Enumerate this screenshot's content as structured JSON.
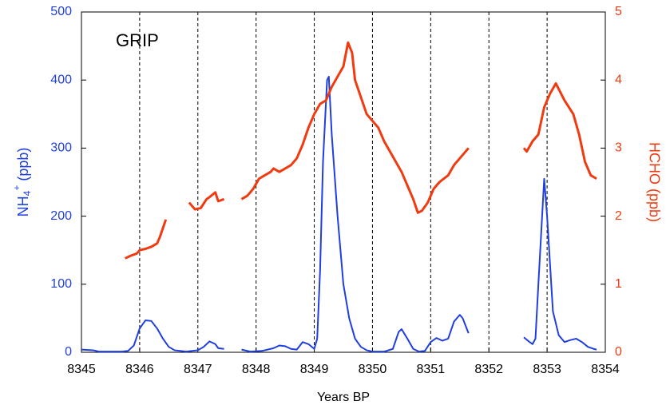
{
  "chart_data": {
    "type": "line",
    "annotation": "GRIP",
    "x_label": "Years BP",
    "y_label": {
      "base": "NH",
      "sub": "4",
      "sup": "+",
      "unit": " (ppb)"
    },
    "y2_label": "HCHO (ppb)",
    "xlim": [
      8345,
      8354
    ],
    "xticks": [
      8345,
      8346,
      8347,
      8348,
      8349,
      8350,
      8351,
      8352,
      8353,
      8354
    ],
    "ylim": [
      0,
      500
    ],
    "yticks": [
      0,
      100,
      200,
      300,
      400,
      500
    ],
    "y2lim": [
      0,
      5
    ],
    "y2ticks": [
      0,
      1,
      2,
      3,
      4,
      5
    ],
    "xgrid": "dashed",
    "series": [
      {
        "color": "#1f3fe0",
        "axis": "y",
        "x": [
          8345.0,
          8345.2,
          8345.3,
          8345.5,
          8345.7,
          8345.8,
          8345.9,
          8346.0,
          8346.1,
          8346.2,
          8346.3,
          8346.4,
          8346.5,
          8346.6,
          8346.8,
          8347.0,
          8347.1,
          8347.2,
          8347.3,
          8347.35,
          8347.45,
          8347.6,
          8347.75,
          8347.9,
          8348.1,
          8348.3,
          8348.4,
          8348.5,
          8348.6,
          8348.7,
          8348.8,
          8348.9,
          8349.0,
          8349.05,
          8349.1,
          8349.15,
          8349.22,
          8349.25,
          8349.3,
          8349.4,
          8349.5,
          8349.6,
          8349.7,
          8349.8,
          8349.9,
          8350.0,
          8350.2,
          8350.35,
          8350.45,
          8350.5,
          8350.6,
          8350.7,
          8350.8,
          8350.9,
          8351.0,
          8351.1,
          8351.2,
          8351.3,
          8351.4,
          8351.5,
          8351.55,
          8351.65,
          8352.1,
          8352.6,
          8352.7,
          8352.75,
          8352.8,
          8352.85,
          8352.95,
          8353.0,
          8353.1,
          8353.2,
          8353.3,
          8353.4,
          8353.5,
          8353.6,
          8353.7,
          8353.8,
          8353.85
        ],
        "values": [
          4,
          3,
          1,
          1,
          1,
          2,
          10,
          35,
          47,
          46,
          35,
          20,
          8,
          3,
          1,
          3,
          8,
          16,
          12,
          6,
          5,
          null,
          4,
          1,
          2,
          6,
          10,
          9,
          5,
          4,
          15,
          12,
          5,
          20,
          120,
          280,
          400,
          405,
          320,
          200,
          100,
          50,
          20,
          8,
          3,
          1,
          1,
          5,
          30,
          34,
          20,
          5,
          1,
          2,
          15,
          21,
          17,
          20,
          45,
          55,
          50,
          28,
          null,
          22,
          15,
          12,
          20,
          100,
          255,
          200,
          60,
          25,
          15,
          18,
          20,
          15,
          8,
          5,
          4
        ]
      },
      {
        "color": "#f03a10",
        "axis": "y2",
        "x": [
          8345.75,
          8345.85,
          8345.95,
          8346.0,
          8346.1,
          8346.2,
          8346.3,
          8346.35,
          8346.45,
          8346.65,
          8346.85,
          8346.95,
          8347.05,
          8347.15,
          8347.2,
          8347.3,
          8347.35,
          8347.45,
          8347.6,
          8347.75,
          8347.85,
          8347.95,
          8348.05,
          8348.15,
          8348.25,
          8348.3,
          8348.4,
          8348.5,
          8348.6,
          8348.7,
          8348.8,
          8348.9,
          8349.0,
          8349.1,
          8349.2,
          8349.3,
          8349.4,
          8349.5,
          8349.58,
          8349.65,
          8349.7,
          8349.8,
          8349.9,
          8350.0,
          8350.1,
          8350.2,
          8350.3,
          8350.4,
          8350.5,
          8350.6,
          8350.7,
          8350.78,
          8350.85,
          8350.95,
          8351.05,
          8351.15,
          8351.3,
          8351.4,
          8351.55,
          8351.65,
          8352.1,
          8352.6,
          8352.65,
          8352.75,
          8352.85,
          8352.95,
          8353.05,
          8353.15,
          8353.3,
          8353.45,
          8353.55,
          8353.65,
          8353.75,
          8353.85
        ],
        "values": [
          1.38,
          1.42,
          1.45,
          1.5,
          1.52,
          1.55,
          1.6,
          1.7,
          1.95,
          null,
          2.2,
          2.1,
          2.12,
          2.25,
          2.28,
          2.35,
          2.22,
          2.25,
          null,
          2.25,
          2.3,
          2.4,
          2.55,
          2.6,
          2.65,
          2.7,
          2.65,
          2.7,
          2.75,
          2.85,
          3.05,
          3.3,
          3.5,
          3.65,
          3.7,
          3.9,
          4.05,
          4.2,
          4.55,
          4.4,
          4.0,
          3.75,
          3.5,
          3.4,
          3.3,
          3.1,
          2.95,
          2.8,
          2.65,
          2.45,
          2.25,
          2.05,
          2.08,
          2.2,
          2.4,
          2.5,
          2.6,
          2.75,
          2.9,
          3.0,
          null,
          3.0,
          2.95,
          3.1,
          3.2,
          3.6,
          3.8,
          3.95,
          3.7,
          3.5,
          3.2,
          2.8,
          2.6,
          2.55
        ]
      }
    ]
  }
}
